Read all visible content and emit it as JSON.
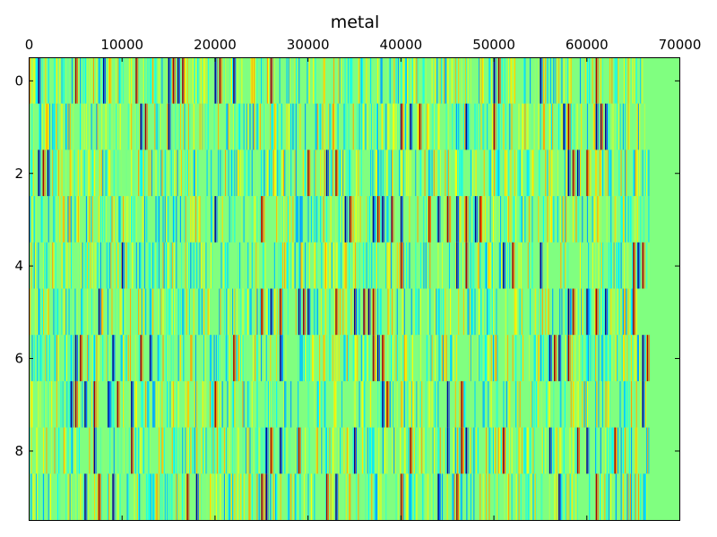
{
  "chart_data": {
    "type": "heatmap",
    "title": "metal",
    "xlabel": "",
    "ylabel": "",
    "xlim": [
      0,
      70000
    ],
    "ylim": [
      -0.5,
      9.5
    ],
    "x_ticks": [
      0,
      10000,
      20000,
      30000,
      40000,
      50000,
      60000,
      70000
    ],
    "x_tick_labels": [
      "0",
      "10000",
      "20000",
      "30000",
      "40000",
      "50000",
      "60000",
      "70000"
    ],
    "y_ticks": [
      0,
      2,
      4,
      6,
      8
    ],
    "y_tick_labels": [
      "0",
      "2",
      "4",
      "6",
      "8"
    ],
    "x_axis_position": "top",
    "rows": 10,
    "data_length": 66700,
    "background_value": 0,
    "colormap": "jet",
    "grid": false,
    "highlighted_stripes": [
      {
        "row": 0,
        "x": [
          1000,
          5000,
          8000,
          11500,
          15000,
          15500,
          16000,
          16500,
          20000,
          20500,
          22000,
          26000,
          50000,
          50500,
          55000,
          61000
        ]
      },
      {
        "row": 1,
        "x": [
          12000,
          12500,
          15000,
          40000,
          41000,
          42000,
          47000,
          50000,
          57500,
          58000,
          61000,
          61500,
          62000
        ]
      },
      {
        "row": 2,
        "x": [
          1000,
          1500,
          2000,
          30000,
          32000,
          33000,
          58000,
          58500,
          59000,
          60000
        ]
      },
      {
        "row": 3,
        "x": [
          20000,
          25000,
          34000,
          34500,
          37000,
          37500,
          38000,
          39000,
          40000,
          43000,
          44000,
          45000,
          46000,
          47000,
          48000,
          48500
        ]
      },
      {
        "row": 4,
        "x": [
          10000,
          40000,
          46000,
          47000,
          51000,
          52000,
          55000,
          65000,
          65500,
          66000
        ]
      },
      {
        "row": 5,
        "x": [
          7500,
          25000,
          26000,
          27000,
          29000,
          29500,
          30000,
          33000,
          35000,
          36000,
          36500,
          37000,
          58000,
          58500,
          60000,
          61000,
          62000,
          65000
        ]
      },
      {
        "row": 6,
        "x": [
          5000,
          5500,
          9000,
          12000,
          13000,
          22000,
          27000,
          37000,
          37500,
          38000,
          56000,
          56500,
          57000,
          58000,
          66000,
          66500
        ]
      },
      {
        "row": 7,
        "x": [
          4500,
          5000,
          6000,
          7000,
          8500,
          9500,
          11000,
          20000,
          38000,
          38500,
          45000,
          46500,
          66000
        ]
      },
      {
        "row": 8,
        "x": [
          7000,
          11000,
          25500,
          26000,
          27000,
          29000,
          35000,
          41000,
          45000,
          46500,
          47000,
          51000,
          56000,
          59000,
          60000,
          63000
        ]
      },
      {
        "row": 9,
        "x": [
          6000,
          7500,
          9000,
          17000,
          18000,
          25000,
          25500,
          32000,
          33000,
          40000,
          44000,
          46000,
          57000,
          61000
        ]
      }
    ]
  }
}
